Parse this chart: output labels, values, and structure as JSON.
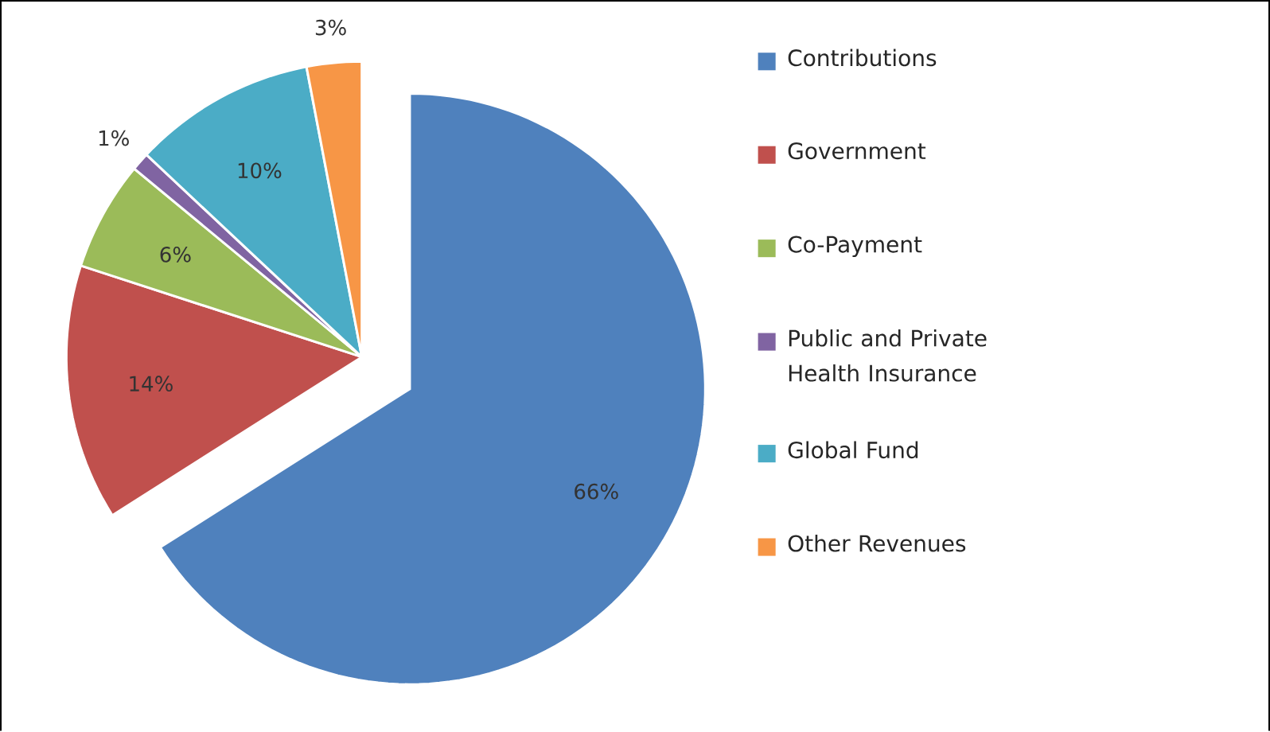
{
  "chart_data": {
    "type": "pie",
    "categories": [
      "Contributions",
      "Government",
      "Co-Payment",
      "Public and Private Health Insurance",
      "Global Fund",
      "Other Revenues"
    ],
    "values": [
      66,
      14,
      6,
      1,
      10,
      3
    ],
    "value_labels": [
      "66%",
      "14%",
      "6%",
      "1%",
      "10%",
      "3%"
    ],
    "colors": [
      "#4f81bd",
      "#c0504d",
      "#9bbb59",
      "#8064a2",
      "#4bacc6",
      "#f79646"
    ],
    "legend": "right"
  }
}
